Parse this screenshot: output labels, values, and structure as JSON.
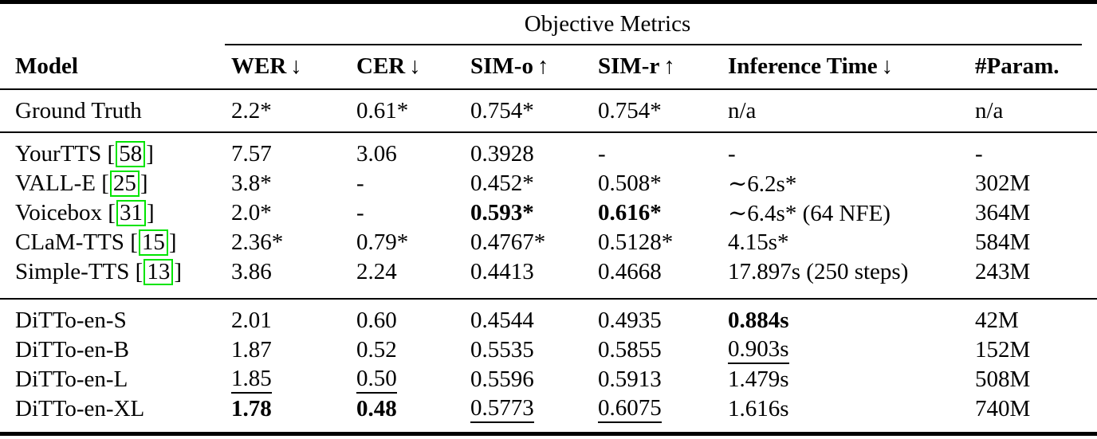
{
  "group_header": "Objective Metrics",
  "columns": [
    {
      "label": "Model",
      "arrow": ""
    },
    {
      "label": "WER",
      "arrow": "↓"
    },
    {
      "label": "CER",
      "arrow": "↓"
    },
    {
      "label": "SIM-o",
      "arrow": "↑"
    },
    {
      "label": "SIM-r",
      "arrow": "↑"
    },
    {
      "label": "Inference Time",
      "arrow": "↓"
    },
    {
      "label": "#Param.",
      "arrow": ""
    }
  ],
  "colors": {
    "text": "#000000",
    "background": "#ffffff",
    "citation_border": "#00e400"
  },
  "sections": [
    {
      "name": "ground-truth",
      "rows": [
        {
          "model": "Ground Truth",
          "cite": "",
          "cells": [
            [
              "2.2*",
              "n"
            ],
            [
              "0.61*",
              "n"
            ],
            [
              "0.754*",
              "n"
            ],
            [
              "0.754*",
              "n"
            ],
            [
              "n/a",
              "n"
            ],
            [
              "n/a",
              "n"
            ]
          ]
        }
      ]
    },
    {
      "name": "baselines",
      "rows": [
        {
          "model": "YourTTS",
          "cite": "58",
          "cells": [
            [
              "7.57",
              "n"
            ],
            [
              "3.06",
              "n"
            ],
            [
              "0.3928",
              "n"
            ],
            [
              "-",
              "n"
            ],
            [
              "-",
              "n"
            ],
            [
              "-",
              "n"
            ]
          ]
        },
        {
          "model": "VALL-E",
          "cite": "25",
          "cells": [
            [
              "3.8*",
              "n"
            ],
            [
              "-",
              "n"
            ],
            [
              "0.452*",
              "n"
            ],
            [
              "0.508*",
              "n"
            ],
            [
              "∼6.2s*",
              "n"
            ],
            [
              "302M",
              "n"
            ]
          ]
        },
        {
          "model": "Voicebox",
          "cite": "31",
          "cells": [
            [
              "2.0*",
              "n"
            ],
            [
              "-",
              "n"
            ],
            [
              "0.593*",
              "b"
            ],
            [
              "0.616*",
              "b"
            ],
            [
              "∼6.4s* (64 NFE)",
              "n"
            ],
            [
              "364M",
              "n"
            ]
          ]
        },
        {
          "model": "CLaM-TTS",
          "cite": "15",
          "cells": [
            [
              "2.36*",
              "n"
            ],
            [
              "0.79*",
              "n"
            ],
            [
              "0.4767*",
              "n"
            ],
            [
              "0.5128*",
              "n"
            ],
            [
              "4.15s*",
              "n"
            ],
            [
              "584M",
              "n"
            ]
          ]
        },
        {
          "model": "Simple-TTS",
          "cite": "13",
          "cells": [
            [
              "3.86",
              "n"
            ],
            [
              "2.24",
              "n"
            ],
            [
              "0.4413",
              "n"
            ],
            [
              "0.4668",
              "n"
            ],
            [
              "17.897s (250 steps)",
              "n"
            ],
            [
              "243M",
              "n"
            ]
          ]
        }
      ]
    },
    {
      "name": "ditto-models",
      "rows": [
        {
          "model": "DiTTo-en-S",
          "cite": "",
          "cells": [
            [
              "2.01",
              "n"
            ],
            [
              "0.60",
              "n"
            ],
            [
              "0.4544",
              "n"
            ],
            [
              "0.4935",
              "n"
            ],
            [
              "0.884s",
              "b"
            ],
            [
              "42M",
              "n"
            ]
          ]
        },
        {
          "model": "DiTTo-en-B",
          "cite": "",
          "cells": [
            [
              "1.87",
              "n"
            ],
            [
              "0.52",
              "n"
            ],
            [
              "0.5535",
              "n"
            ],
            [
              "0.5855",
              "n"
            ],
            [
              "0.903s",
              "u"
            ],
            [
              "152M",
              "n"
            ]
          ]
        },
        {
          "model": "DiTTo-en-L",
          "cite": "",
          "cells": [
            [
              "1.85",
              "u"
            ],
            [
              "0.50",
              "u"
            ],
            [
              "0.5596",
              "n"
            ],
            [
              "0.5913",
              "n"
            ],
            [
              "1.479s",
              "n"
            ],
            [
              "508M",
              "n"
            ]
          ]
        },
        {
          "model": "DiTTo-en-XL",
          "cite": "",
          "cells": [
            [
              "1.78",
              "b"
            ],
            [
              "0.48",
              "b"
            ],
            [
              "0.5773",
              "u"
            ],
            [
              "0.6075",
              "u"
            ],
            [
              "1.616s",
              "n"
            ],
            [
              "740M",
              "n"
            ]
          ]
        }
      ]
    }
  ]
}
